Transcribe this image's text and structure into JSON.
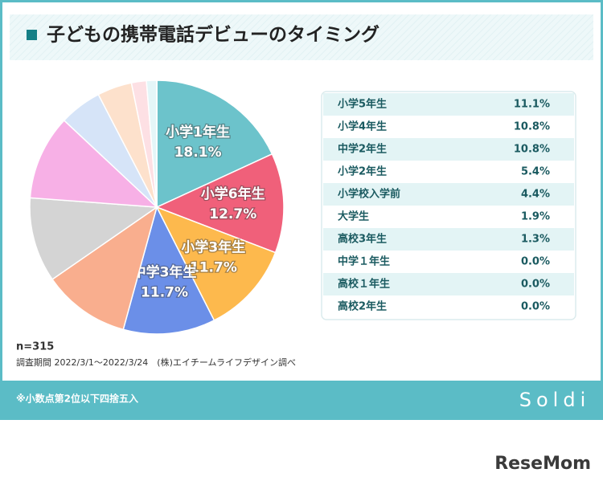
{
  "chart_data": {
    "type": "pie",
    "title": "子どもの携帯電話デビューのタイミング",
    "categories": [
      "小学1年生",
      "小学6年生",
      "小学3年生",
      "中学3年生",
      "小学5年生",
      "小学4年生",
      "中学2年生",
      "小学2年生",
      "小学校入学前",
      "大学生",
      "高校3年生",
      "中学１年生",
      "高校１年生",
      "高校2年生"
    ],
    "values": [
      18.1,
      12.7,
      11.7,
      11.7,
      11.1,
      10.8,
      10.8,
      5.4,
      4.4,
      1.9,
      1.3,
      0.0,
      0.0,
      0.0
    ],
    "value_labels": [
      "18.1%",
      "12.7%",
      "11.7%",
      "11.7%",
      "11.1%",
      "10.8%",
      "10.8%",
      "5.4%",
      "4.4%",
      "1.9%",
      "1.3%",
      "0.0%",
      "0.0%",
      "0.0%"
    ],
    "colors": [
      "#6cc3cb",
      "#f0607a",
      "#fdb94d",
      "#6b8fe8",
      "#f9ae8e",
      "#d4d4d4",
      "#f7b0e6",
      "#d6e4f8",
      "#fde1cc",
      "#fde0e4",
      "#e4f6f8",
      "#ffffff",
      "#ffffff",
      "#ffffff"
    ],
    "note": "n=315",
    "source": "調査期間 2022/3/1〜2022/3/24　(株)エイチームライフデザイン調べ",
    "footnote": "※小数点第2位以下四捨五入"
  },
  "branding": {
    "card_logo": "Soldi",
    "site_logo": "ReseMom"
  }
}
